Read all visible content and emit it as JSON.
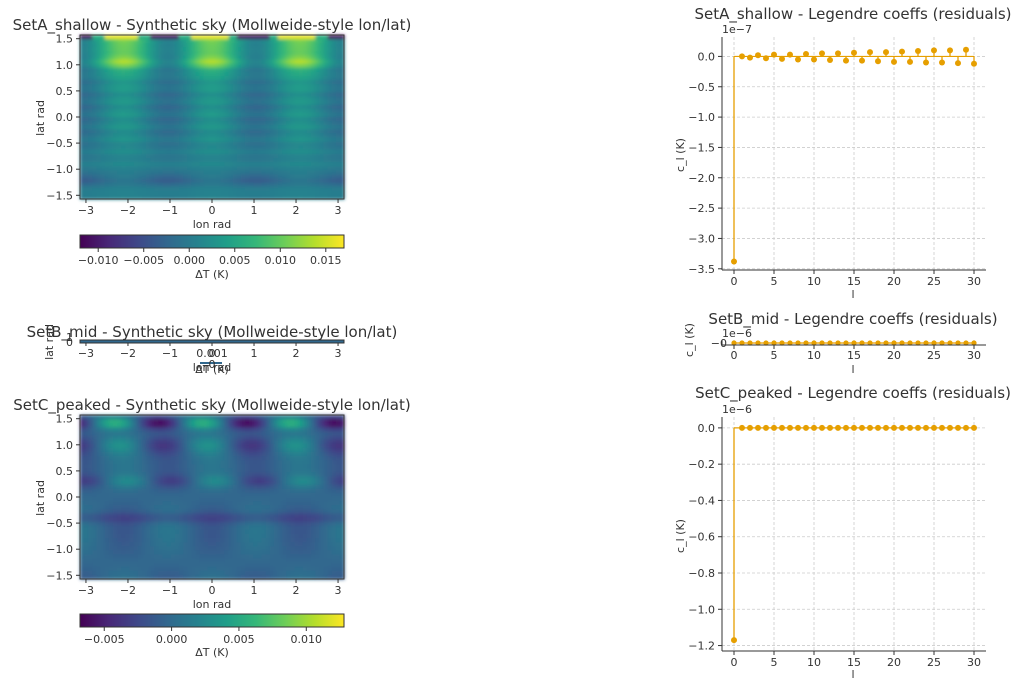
{
  "colors": {
    "stem": "#E69F00",
    "viridis": [
      "#440154",
      "#482878",
      "#3e4989",
      "#31688e",
      "#26828e",
      "#1f9e89",
      "#35b779",
      "#6ece58",
      "#b5de2b",
      "#fde725"
    ]
  },
  "chart_data": [
    {
      "id": "A_map",
      "type": "heatmap",
      "title": "SetA_shallow - Synthetic sky (Mollweide-style lon/lat)",
      "xlabel": "lon rad",
      "ylabel": "lat rad",
      "xlim": [
        -3.14159,
        3.14159
      ],
      "ylim": [
        -1.5708,
        1.5708
      ],
      "xticks": [
        -3,
        -2,
        -1,
        0,
        1,
        2,
        3
      ],
      "xtick_labels": [
        "−3",
        "−2",
        "−1",
        "0",
        "1",
        "2",
        "3"
      ],
      "yticks": [
        1.5,
        1.0,
        0.5,
        0.0,
        -0.5,
        -1.0,
        -1.5
      ],
      "ytick_labels": [
        "1.5",
        "1.0",
        "0.5",
        "0.0",
        "−0.5",
        "−1.0",
        "−1.5"
      ],
      "colorbar": {
        "label": "ΔT (K)",
        "range": [
          -0.012,
          0.017
        ],
        "ticks": [
          -0.01,
          -0.005,
          0.0,
          0.005,
          0.01,
          0.015
        ],
        "tick_labels": [
          "−0.010",
          "−0.005",
          "0.000",
          "0.005",
          "0.010",
          "0.015"
        ]
      }
    },
    {
      "id": "B_map",
      "type": "heatmap",
      "title": "SetB_mid - Synthetic sky (Mollweide-style lon/lat)",
      "xlabel": "lon rad",
      "ylabel": "lat rad",
      "xticks": [
        -3,
        -2,
        -1,
        0,
        1,
        2,
        3
      ],
      "xtick_labels": [
        "−3",
        "−2",
        "−1",
        "0",
        "1",
        "2",
        "3"
      ],
      "ytick_labels": [
        "0",
        "1"
      ],
      "colorbar": {
        "label": "ΔT (K)",
        "tick_labels": [
          "0.001",
          "0"
        ]
      }
    },
    {
      "id": "C_map",
      "type": "heatmap",
      "title": "SetC_peaked - Synthetic sky (Mollweide-style lon/lat)",
      "xlabel": "lon rad",
      "ylabel": "lat rad",
      "xlim": [
        -3.14159,
        3.14159
      ],
      "ylim": [
        -1.5708,
        1.5708
      ],
      "xticks": [
        -3,
        -2,
        -1,
        0,
        1,
        2,
        3
      ],
      "xtick_labels": [
        "−3",
        "−2",
        "−1",
        "0",
        "1",
        "2",
        "3"
      ],
      "yticks": [
        1.5,
        1.0,
        0.5,
        0.0,
        -0.5,
        -1.0,
        -1.5
      ],
      "ytick_labels": [
        "1.5",
        "1.0",
        "0.5",
        "0.0",
        "−0.5",
        "−1.0",
        "−1.5"
      ],
      "colorbar": {
        "label": "ΔT (K)",
        "range": [
          -0.0068,
          0.0128
        ],
        "ticks": [
          -0.005,
          0.0,
          0.005,
          0.01
        ],
        "tick_labels": [
          "−0.005",
          "0.000",
          "0.005",
          "0.010"
        ]
      }
    },
    {
      "id": "A_stem",
      "type": "scatter",
      "style": "stem",
      "title": "SetA_shallow - Legendre coeffs (residuals)",
      "xlabel": "l",
      "ylabel": "c_l (K)",
      "offset_text": "1e−7",
      "xlim": [
        -1.5,
        31.5
      ],
      "ylim": [
        -3.52,
        0.32
      ],
      "xticks": [
        0,
        5,
        10,
        15,
        20,
        25,
        30
      ],
      "yticks": [
        0.0,
        -0.5,
        -1.0,
        -1.5,
        -2.0,
        -2.5,
        -3.0,
        -3.5
      ],
      "ytick_labels": [
        "0.0",
        "−0.5",
        "−1.0",
        "−1.5",
        "−2.0",
        "−2.5",
        "−3.0",
        "−3.5"
      ],
      "x": [
        0,
        1,
        2,
        3,
        4,
        5,
        6,
        7,
        8,
        9,
        10,
        11,
        12,
        13,
        14,
        15,
        16,
        17,
        18,
        19,
        20,
        21,
        22,
        23,
        24,
        25,
        26,
        27,
        28,
        29,
        30
      ],
      "values": [
        -3.38,
        0.0,
        -0.02,
        0.02,
        -0.03,
        0.03,
        -0.04,
        0.03,
        -0.05,
        0.04,
        -0.05,
        0.05,
        -0.06,
        0.05,
        -0.07,
        0.06,
        -0.07,
        0.07,
        -0.08,
        0.07,
        -0.09,
        0.08,
        -0.09,
        0.09,
        -0.1,
        0.1,
        -0.1,
        0.1,
        -0.11,
        0.11,
        -0.12
      ]
    },
    {
      "id": "B_stem",
      "type": "scatter",
      "style": "stem",
      "title": "SetB_mid - Legendre coeffs (residuals)",
      "xlabel": "l",
      "ylabel": "c_l (K)",
      "offset_text": "1e−6",
      "xticks": [
        0,
        5,
        10,
        15,
        20,
        25,
        30
      ],
      "ytick_labels": [
        "−0"
      ],
      "x": [
        0,
        1,
        2,
        3,
        4,
        5,
        6,
        7,
        8,
        9,
        10,
        11,
        12,
        13,
        14,
        15,
        16,
        17,
        18,
        19,
        20,
        21,
        22,
        23,
        24,
        25,
        26,
        27,
        28,
        29,
        30
      ]
    },
    {
      "id": "C_stem",
      "type": "scatter",
      "style": "stem",
      "title": "SetC_peaked - Legendre coeffs (residuals)",
      "xlabel": "l",
      "ylabel": "c_l (K)",
      "offset_text": "1e−6",
      "xlim": [
        -1.5,
        31.5
      ],
      "ylim": [
        -1.23,
        0.06
      ],
      "xticks": [
        0,
        5,
        10,
        15,
        20,
        25,
        30
      ],
      "yticks": [
        0.0,
        -0.2,
        -0.4,
        -0.6,
        -0.8,
        -1.0,
        -1.2
      ],
      "ytick_labels": [
        "0.0",
        "−0.2",
        "−0.4",
        "−0.6",
        "−0.8",
        "−1.0",
        "−1.2"
      ],
      "x": [
        0,
        1,
        2,
        3,
        4,
        5,
        6,
        7,
        8,
        9,
        10,
        11,
        12,
        13,
        14,
        15,
        16,
        17,
        18,
        19,
        20,
        21,
        22,
        23,
        24,
        25,
        26,
        27,
        28,
        29,
        30
      ],
      "values": [
        -1.17,
        0.0,
        0.0,
        0.0,
        0.0,
        0.0,
        0.0,
        0.0,
        0.0,
        0.0,
        0.0,
        0.0,
        0.0,
        0.0,
        0.0,
        0.0,
        0.0,
        0.0,
        0.0,
        0.0,
        0.0,
        0.0,
        0.0,
        0.0,
        0.0,
        0.0,
        0.0,
        0.0,
        0.0,
        0.0,
        0.0
      ]
    }
  ]
}
